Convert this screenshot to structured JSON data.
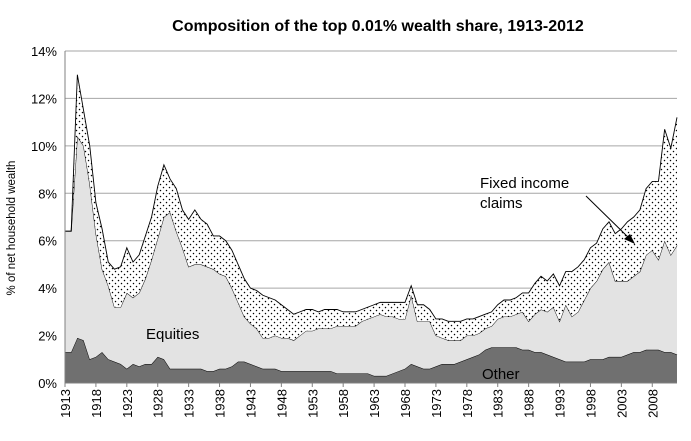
{
  "chart_data": {
    "type": "area",
    "stacked": true,
    "title": "Composition of the top 0.01% wealth share, 1913-2012",
    "xlabel": "",
    "ylabel": "% of net household wealth",
    "ylim": [
      0,
      14
    ],
    "xlim": [
      1913,
      2012
    ],
    "grid": true,
    "y_ticks": [
      0,
      2,
      4,
      6,
      8,
      10,
      12,
      14
    ],
    "y_tick_labels": [
      "0%",
      "2%",
      "4%",
      "6%",
      "8%",
      "10%",
      "12%",
      "14%"
    ],
    "x_ticks": [
      1913,
      1918,
      1923,
      1928,
      1933,
      1938,
      1943,
      1948,
      1953,
      1958,
      1963,
      1968,
      1973,
      1978,
      1983,
      1988,
      1993,
      1998,
      2003,
      2008
    ],
    "x_tick_labels": [
      "1913",
      "1918",
      "1923",
      "1928",
      "1933",
      "1938",
      "1943",
      "1948",
      "1953",
      "1958",
      "1963",
      "1968",
      "1973",
      "1978",
      "1983",
      "1988",
      "1993",
      "1998",
      "2003",
      "2008"
    ],
    "annotations": {
      "equities": "Equities",
      "other": "Other",
      "fixed_line1": "Fixed income",
      "fixed_line2": "claims"
    },
    "x": [
      1913,
      1914,
      1915,
      1916,
      1917,
      1918,
      1919,
      1920,
      1921,
      1922,
      1923,
      1924,
      1925,
      1926,
      1927,
      1928,
      1929,
      1930,
      1931,
      1932,
      1933,
      1934,
      1935,
      1936,
      1937,
      1938,
      1939,
      1940,
      1941,
      1942,
      1943,
      1944,
      1945,
      1946,
      1947,
      1948,
      1949,
      1950,
      1951,
      1952,
      1953,
      1954,
      1955,
      1956,
      1957,
      1958,
      1959,
      1960,
      1961,
      1962,
      1963,
      1964,
      1965,
      1966,
      1967,
      1968,
      1969,
      1970,
      1971,
      1972,
      1973,
      1974,
      1975,
      1976,
      1977,
      1978,
      1979,
      1980,
      1981,
      1982,
      1983,
      1984,
      1985,
      1986,
      1987,
      1988,
      1989,
      1990,
      1991,
      1992,
      1993,
      1994,
      1995,
      1996,
      1997,
      1998,
      1999,
      2000,
      2001,
      2002,
      2003,
      2004,
      2005,
      2006,
      2007,
      2008,
      2009,
      2010,
      2011,
      2012
    ],
    "series": [
      {
        "name": "Other",
        "color": "#707070",
        "values": [
          1.3,
          1.3,
          1.9,
          1.8,
          1.0,
          1.1,
          1.3,
          1.0,
          0.9,
          0.8,
          0.6,
          0.8,
          0.7,
          0.8,
          0.8,
          1.1,
          1.0,
          0.6,
          0.6,
          0.6,
          0.6,
          0.6,
          0.6,
          0.5,
          0.5,
          0.6,
          0.6,
          0.7,
          0.9,
          0.9,
          0.8,
          0.7,
          0.6,
          0.6,
          0.6,
          0.5,
          0.5,
          0.5,
          0.5,
          0.5,
          0.5,
          0.5,
          0.5,
          0.5,
          0.4,
          0.4,
          0.4,
          0.4,
          0.4,
          0.4,
          0.3,
          0.3,
          0.3,
          0.4,
          0.5,
          0.6,
          0.8,
          0.7,
          0.6,
          0.6,
          0.7,
          0.8,
          0.8,
          0.8,
          0.9,
          1.0,
          1.1,
          1.2,
          1.4,
          1.5,
          1.5,
          1.5,
          1.5,
          1.5,
          1.4,
          1.4,
          1.3,
          1.3,
          1.2,
          1.1,
          1.0,
          0.9,
          0.9,
          0.9,
          0.9,
          1.0,
          1.0,
          1.0,
          1.1,
          1.1,
          1.1,
          1.2,
          1.3,
          1.3,
          1.4,
          1.4,
          1.4,
          1.3,
          1.3,
          1.2
        ]
      },
      {
        "name": "Equities",
        "color": "#e3e3e3",
        "values": [
          5.1,
          5.1,
          8.5,
          8.2,
          7.4,
          5.2,
          3.5,
          3.1,
          2.3,
          2.4,
          3.2,
          2.8,
          3.1,
          3.6,
          4.4,
          5.0,
          6.0,
          6.6,
          5.8,
          5.1,
          4.3,
          4.4,
          4.4,
          4.4,
          4.3,
          4.0,
          3.9,
          3.3,
          2.5,
          1.9,
          1.7,
          1.6,
          1.3,
          1.3,
          1.4,
          1.4,
          1.4,
          1.3,
          1.5,
          1.7,
          1.7,
          1.8,
          1.8,
          1.8,
          2.0,
          2.0,
          2.0,
          2.0,
          2.2,
          2.3,
          2.5,
          2.6,
          2.5,
          2.4,
          2.2,
          2.1,
          2.9,
          1.9,
          2.0,
          2.0,
          1.3,
          1.1,
          1.0,
          1.0,
          0.9,
          1.0,
          0.9,
          0.9,
          0.9,
          0.9,
          1.2,
          1.3,
          1.3,
          1.4,
          1.6,
          1.2,
          1.6,
          1.8,
          1.8,
          2.1,
          1.6,
          2.4,
          1.9,
          2.1,
          2.6,
          3.0,
          3.3,
          3.8,
          4.0,
          3.2,
          3.2,
          3.1,
          3.2,
          3.4,
          4.0,
          4.2,
          3.8,
          4.7,
          4.1,
          4.6
        ]
      },
      {
        "name": "Fixed income claims",
        "color": "#ffffff",
        "pattern": "dots",
        "values": [
          0.0,
          0.0,
          2.6,
          1.5,
          1.6,
          1.3,
          1.7,
          1.0,
          1.6,
          1.7,
          1.9,
          1.5,
          1.6,
          1.8,
          1.8,
          2.2,
          2.2,
          1.4,
          1.8,
          1.6,
          2.0,
          2.3,
          1.9,
          1.8,
          1.4,
          1.6,
          1.5,
          1.6,
          1.6,
          1.6,
          1.5,
          1.6,
          1.8,
          1.7,
          1.5,
          1.4,
          1.2,
          1.1,
          1.0,
          0.9,
          0.9,
          0.7,
          0.8,
          0.8,
          0.7,
          0.6,
          0.6,
          0.6,
          0.5,
          0.5,
          0.5,
          0.5,
          0.6,
          0.6,
          0.7,
          0.7,
          0.4,
          0.7,
          0.7,
          0.5,
          0.7,
          0.8,
          0.8,
          0.8,
          0.8,
          0.7,
          0.7,
          0.7,
          0.6,
          0.6,
          0.6,
          0.7,
          0.7,
          0.7,
          0.8,
          1.2,
          1.3,
          1.4,
          1.3,
          1.4,
          1.5,
          1.4,
          1.9,
          1.9,
          1.7,
          1.7,
          1.6,
          1.7,
          1.7,
          2.0,
          2.2,
          2.5,
          2.5,
          2.6,
          2.8,
          2.9,
          3.3,
          4.7,
          4.5,
          5.4
        ]
      }
    ],
    "outline_color": "#000000"
  }
}
